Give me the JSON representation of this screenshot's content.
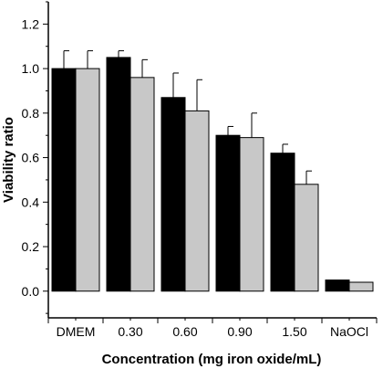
{
  "chart_data": {
    "type": "bar",
    "categories": [
      "DMEM",
      "0.30",
      "0.60",
      "0.90",
      "1.50",
      "NaOCl"
    ],
    "series": [
      {
        "color": "#000000",
        "values": [
          1.0,
          1.05,
          0.87,
          0.7,
          0.62,
          0.05
        ],
        "errors": [
          0.08,
          0.03,
          0.11,
          0.04,
          0.04,
          0.0
        ]
      },
      {
        "color": "#c8c8c8",
        "values": [
          1.0,
          0.96,
          0.81,
          0.69,
          0.48,
          0.04
        ],
        "errors": [
          0.08,
          0.08,
          0.14,
          0.11,
          0.06,
          0.0
        ]
      }
    ],
    "xlabel": "Concentration (mg iron oxide/mL)",
    "ylabel": "Viability ratio",
    "ylim": [
      -0.12,
      1.3
    ],
    "yticks": [
      0.0,
      0.2,
      0.4,
      0.6,
      0.8,
      1.0,
      1.2
    ],
    "ytick_labels": [
      "0.0",
      "0.2",
      "0.4",
      "0.6",
      "0.8",
      "1.0",
      "1.2"
    ],
    "grid": false
  }
}
